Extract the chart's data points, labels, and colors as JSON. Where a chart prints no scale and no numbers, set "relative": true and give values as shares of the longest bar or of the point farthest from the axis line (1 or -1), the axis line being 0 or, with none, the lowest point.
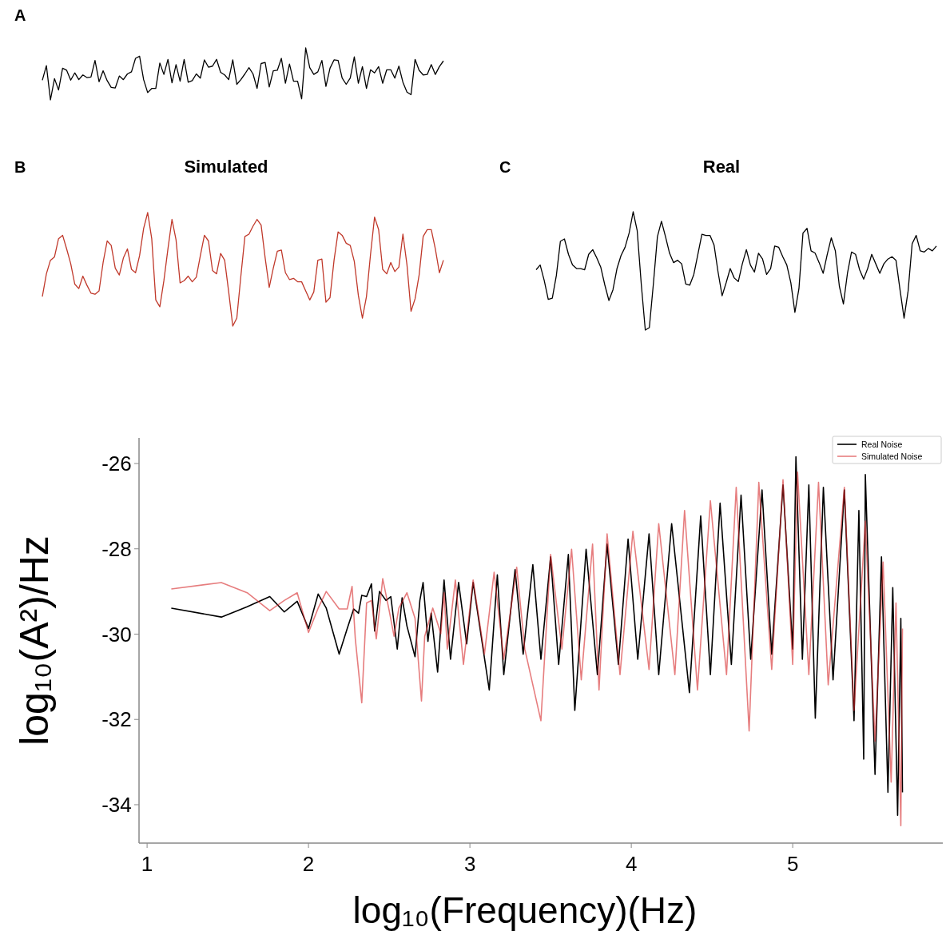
{
  "chart_data": [
    {
      "type": "line",
      "relative": true,
      "annotations": [
        "A"
      ],
      "categories": [
        null,
        null,
        null,
        null,
        null,
        null,
        null,
        null,
        null,
        null,
        null,
        null,
        null,
        null,
        null,
        null,
        null,
        null,
        null,
        null,
        null,
        null,
        null,
        null,
        null,
        null,
        null,
        null,
        null,
        null,
        null,
        null,
        null,
        null,
        null,
        null,
        null,
        null,
        null,
        null,
        null,
        null,
        null,
        null,
        null,
        null,
        null,
        null,
        null,
        null,
        null,
        null,
        null,
        null,
        null,
        null,
        null,
        null,
        null,
        null,
        null,
        null,
        null,
        null,
        null,
        null,
        null,
        null,
        null,
        null,
        null,
        null,
        null,
        null,
        null,
        null,
        null,
        null,
        null,
        null,
        null,
        null,
        null,
        null,
        null,
        null,
        null,
        null,
        null,
        null,
        null,
        null,
        null,
        null,
        null,
        null,
        null,
        null,
        null,
        null
      ],
      "series": [
        {
          "color": "#000000",
          "values": [
            0.38,
            0.66,
            0,
            0.41,
            0.19,
            0.61,
            0.57,
            0.38,
            0.52,
            0.39,
            0.48,
            0.43,
            0.44,
            0.76,
            0.35,
            0.56,
            0.37,
            0.24,
            0.23,
            0.46,
            0.39,
            0.5,
            0.54,
            0.8,
            0.84,
            0.39,
            0.14,
            0.22,
            0.22,
            0.71,
            0.49,
            0.78,
            0.33,
            0.68,
            0.36,
            0.78,
            0.34,
            0.37,
            0.5,
            0.42,
            0.77,
            0.63,
            0.65,
            0.78,
            0.53,
            0.48,
            0.39,
            0.77,
            0.3,
            0.39,
            0.5,
            0.62,
            0.5,
            0.22,
            0.7,
            0.72,
            0.25,
            0.56,
            0.57,
            0.8,
            0.32,
            0.69,
            0.36,
            0.36,
            0.02,
            1,
            0.62,
            0.49,
            0.54,
            0.76,
            0.26,
            0.61,
            0.77,
            0.76,
            0.42,
            0.3,
            0.42,
            0.83,
            0.32,
            0.64,
            0.22,
            0.58,
            0.52,
            0.64,
            0.32,
            0.58,
            0.58,
            0.42,
            0.65,
            0.34,
            0.15,
            0.1,
            0.78,
            0.57,
            0.48,
            0.49,
            0.68,
            0.49,
            0.64,
            0.75
          ]
        }
      ]
    },
    {
      "type": "line",
      "relative": true,
      "title": "Simulated",
      "annotations": [
        "B"
      ],
      "categories": [
        null,
        null,
        null,
        null,
        null,
        null,
        null,
        null,
        null,
        null,
        null,
        null,
        null,
        null,
        null,
        null,
        null,
        null,
        null,
        null,
        null,
        null,
        null,
        null,
        null,
        null,
        null,
        null,
        null,
        null,
        null,
        null,
        null,
        null,
        null,
        null,
        null,
        null,
        null,
        null,
        null,
        null,
        null,
        null,
        null,
        null,
        null,
        null,
        null,
        null,
        null,
        null,
        null,
        null,
        null,
        null,
        null,
        null,
        null,
        null,
        null,
        null,
        null,
        null,
        null,
        null,
        null,
        null,
        null,
        null,
        null,
        null,
        null,
        null,
        null,
        null,
        null,
        null,
        null,
        null,
        null,
        null,
        null,
        null,
        null,
        null,
        null,
        null,
        null,
        null,
        null,
        null,
        null,
        null,
        null,
        null,
        null,
        null,
        null,
        null
      ],
      "series": [
        {
          "color": "#c0392b",
          "values": [
            0.26,
            0.46,
            0.58,
            0.61,
            0.77,
            0.8,
            0.68,
            0.55,
            0.37,
            0.33,
            0.44,
            0.36,
            0.29,
            0.28,
            0.31,
            0.56,
            0.75,
            0.71,
            0.51,
            0.45,
            0.6,
            0.68,
            0.5,
            0.47,
            0.62,
            0.86,
            1,
            0.77,
            0.23,
            0.17,
            0.4,
            0.68,
            0.94,
            0.76,
            0.38,
            0.4,
            0.44,
            0.39,
            0.43,
            0.62,
            0.8,
            0.75,
            0.49,
            0.46,
            0.64,
            0.58,
            0.3,
            0,
            0.07,
            0.44,
            0.79,
            0.81,
            0.88,
            0.94,
            0.89,
            0.6,
            0.34,
            0.51,
            0.66,
            0.67,
            0.47,
            0.41,
            0.42,
            0.39,
            0.39,
            0.31,
            0.23,
            0.3,
            0.58,
            0.59,
            0.21,
            0.25,
            0.58,
            0.83,
            0.8,
            0.73,
            0.71,
            0.57,
            0.27,
            0.07,
            0.26,
            0.63,
            0.96,
            0.85,
            0.5,
            0.46,
            0.56,
            0.48,
            0.52,
            0.81,
            0.54,
            0.13,
            0.24,
            0.45,
            0.79,
            0.85,
            0.85,
            0.68,
            0.47,
            0.58
          ]
        }
      ]
    },
    {
      "type": "line",
      "relative": true,
      "title": "Real",
      "annotations": [
        "C"
      ],
      "categories": [
        null,
        null,
        null,
        null,
        null,
        null,
        null,
        null,
        null,
        null,
        null,
        null,
        null,
        null,
        null,
        null,
        null,
        null,
        null,
        null,
        null,
        null,
        null,
        null,
        null,
        null,
        null,
        null,
        null,
        null,
        null,
        null,
        null,
        null,
        null,
        null,
        null,
        null,
        null,
        null,
        null,
        null,
        null,
        null,
        null,
        null,
        null,
        null,
        null,
        null,
        null,
        null,
        null,
        null,
        null,
        null,
        null,
        null,
        null,
        null,
        null,
        null,
        null,
        null,
        null,
        null,
        null,
        null,
        null,
        null,
        null,
        null,
        null,
        null,
        null,
        null,
        null,
        null,
        null,
        null,
        null,
        null,
        null,
        null,
        null,
        null,
        null,
        null,
        null,
        null,
        null,
        null,
        null,
        null,
        null,
        null,
        null,
        null,
        null,
        null
      ],
      "series": [
        {
          "color": "#000000",
          "values": [
            0.51,
            0.55,
            0.42,
            0.26,
            0.27,
            0.46,
            0.75,
            0.77,
            0.64,
            0.55,
            0.52,
            0.52,
            0.51,
            0.64,
            0.68,
            0.61,
            0.53,
            0.38,
            0.25,
            0.34,
            0.52,
            0.63,
            0.7,
            0.82,
            1,
            0.84,
            0.39,
            0,
            0.02,
            0.39,
            0.79,
            0.92,
            0.79,
            0.65,
            0.57,
            0.59,
            0.56,
            0.39,
            0.38,
            0.47,
            0.64,
            0.81,
            0.8,
            0.8,
            0.72,
            0.49,
            0.29,
            0.4,
            0.52,
            0.44,
            0.41,
            0.56,
            0.68,
            0.55,
            0.49,
            0.65,
            0.6,
            0.47,
            0.52,
            0.71,
            0.7,
            0.62,
            0.55,
            0.4,
            0.15,
            0.35,
            0.82,
            0.86,
            0.67,
            0.65,
            0.57,
            0.48,
            0.64,
            0.78,
            0.67,
            0.37,
            0.22,
            0.48,
            0.66,
            0.64,
            0.51,
            0.43,
            0.52,
            0.64,
            0.56,
            0.48,
            0.56,
            0.6,
            0.62,
            0.59,
            0.34,
            0.1,
            0.33,
            0.73,
            0.8,
            0.67,
            0.66,
            0.69,
            0.67,
            0.71
          ]
        }
      ]
    },
    {
      "type": "line",
      "xlabel": "log₁₀(Frequency)(Hz)",
      "ylabel": "log₁₀(A²)/Hz",
      "xlim": [
        0.95,
        5.93
      ],
      "ylim": [
        -34.9,
        -25.4
      ],
      "xticks": [
        1,
        2,
        3,
        4,
        5
      ],
      "yticks": [
        -34,
        -32,
        -30,
        -28,
        -26
      ],
      "legend": "top right",
      "series": [
        {
          "name": "Real Noise",
          "color": "#000000",
          "x": [
            1.15,
            1.46,
            1.62,
            1.76,
            1.85,
            1.93,
            2.0,
            2.06,
            2.11,
            2.19,
            2.24,
            2.28,
            2.31,
            2.33,
            2.36,
            2.39,
            2.41,
            2.44,
            2.48,
            2.51,
            2.55,
            2.58,
            2.61,
            2.66,
            2.69,
            2.71,
            2.74,
            2.76,
            2.8,
            2.84,
            2.88,
            2.93,
            2.98,
            3.02,
            3.12,
            3.17,
            3.21,
            3.28,
            3.33,
            3.39,
            3.44,
            3.5,
            3.55,
            3.61,
            3.65,
            3.72,
            3.79,
            3.85,
            3.92,
            3.98,
            4.04,
            4.11,
            4.17,
            4.25,
            4.36,
            4.43,
            4.49,
            4.55,
            4.62,
            4.68,
            4.74,
            4.81,
            4.87,
            4.94,
            5.0,
            5.02,
            5.06,
            5.1,
            5.14,
            5.19,
            5.25,
            5.32,
            5.38,
            5.41,
            5.44,
            5.45,
            5.51,
            5.55,
            5.59,
            5.62,
            5.65,
            5.67,
            5.68
          ],
          "values": [
            -29.39,
            -29.6,
            -29.36,
            -29.12,
            -29.48,
            -29.23,
            -29.87,
            -29.06,
            -29.39,
            -30.47,
            -29.87,
            -29.41,
            -29.51,
            -29.09,
            -29.12,
            -28.82,
            -29.93,
            -29.0,
            -29.21,
            -29.12,
            -30.35,
            -29.15,
            -29.81,
            -30.53,
            -29.21,
            -28.79,
            -30.17,
            -29.51,
            -30.89,
            -28.73,
            -30.59,
            -28.79,
            -30.23,
            -28.79,
            -31.31,
            -28.61,
            -30.95,
            -28.49,
            -30.47,
            -28.37,
            -30.59,
            -28.19,
            -30.71,
            -28.13,
            -31.79,
            -28.01,
            -30.95,
            -27.89,
            -30.71,
            -27.77,
            -30.59,
            -27.65,
            -30.95,
            -27.41,
            -31.37,
            -27.23,
            -30.95,
            -26.93,
            -30.71,
            -26.74,
            -30.59,
            -26.62,
            -30.47,
            -26.5,
            -30.35,
            -25.84,
            -30.59,
            -26.5,
            -31.97,
            -26.56,
            -31.07,
            -26.62,
            -32.03,
            -27.1,
            -32.93,
            -26.26,
            -33.29,
            -28.19,
            -33.71,
            -28.91,
            -34.25,
            -29.63,
            -33.71
          ]
        },
        {
          "name": "Simulated Noise",
          "color": "#d62728",
          "x": [
            1.15,
            1.46,
            1.62,
            1.76,
            1.85,
            1.93,
            2.0,
            2.06,
            2.11,
            2.19,
            2.24,
            2.27,
            2.29,
            2.33,
            2.36,
            2.39,
            2.42,
            2.46,
            2.5,
            2.53,
            2.56,
            2.61,
            2.66,
            2.7,
            2.72,
            2.77,
            2.82,
            2.84,
            2.86,
            2.91,
            2.96,
            3.02,
            3.09,
            3.15,
            3.21,
            3.29,
            3.34,
            3.44,
            3.5,
            3.57,
            3.63,
            3.69,
            3.76,
            3.8,
            3.85,
            3.93,
            4.01,
            4.11,
            4.17,
            4.27,
            4.33,
            4.41,
            4.49,
            4.59,
            4.65,
            4.73,
            4.79,
            4.87,
            4.94,
            5.0,
            5.03,
            5.1,
            5.16,
            5.22,
            5.32,
            5.38,
            5.45,
            5.51,
            5.56,
            5.61,
            5.64,
            5.67,
            5.68
          ],
          "values": [
            -28.94,
            -28.79,
            -29.03,
            -29.45,
            -29.21,
            -29.03,
            -29.96,
            -29.39,
            -29.0,
            -29.41,
            -29.41,
            -28.88,
            -30.11,
            -31.61,
            -29.27,
            -29.21,
            -30.11,
            -28.7,
            -29.45,
            -30.05,
            -29.39,
            -29.03,
            -29.63,
            -31.57,
            -30.05,
            -29.39,
            -29.99,
            -29.03,
            -30.35,
            -28.73,
            -30.71,
            -28.73,
            -30.47,
            -28.55,
            -30.59,
            -28.43,
            -30.35,
            -32.03,
            -28.13,
            -30.35,
            -28.01,
            -31.07,
            -27.89,
            -31.31,
            -27.65,
            -30.95,
            -27.59,
            -30.83,
            -27.41,
            -30.95,
            -27.1,
            -31.31,
            -26.87,
            -30.95,
            -26.56,
            -32.27,
            -26.44,
            -30.83,
            -26.38,
            -30.71,
            -26.2,
            -30.95,
            -26.44,
            -31.19,
            -26.56,
            -31.79,
            -27.35,
            -32.51,
            -28.31,
            -33.47,
            -29.27,
            -34.49,
            -29.87
          ]
        }
      ]
    }
  ]
}
